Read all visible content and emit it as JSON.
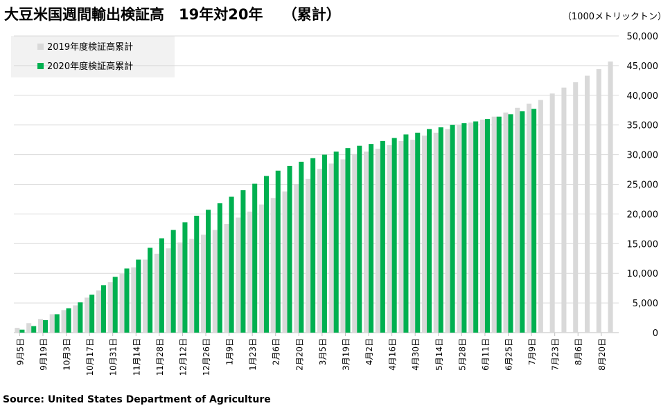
{
  "chart_data": {
    "type": "bar",
    "title": "大豆米国週間輸出検証高　19年対20年　 （累計）",
    "unit_label": "（1000メトリックトン）",
    "source": "Source: United States Department of Agriculture",
    "categories": [
      "9月5日",
      null,
      "9月19日",
      null,
      "10月3日",
      null,
      "10月17日",
      null,
      "10月31日",
      null,
      "11月14日",
      null,
      "11月28日",
      null,
      "12月12日",
      null,
      "12月26日",
      null,
      "1月9日",
      null,
      "1月23日",
      null,
      "2月6日",
      null,
      "2月20日",
      null,
      "3月5日",
      null,
      "3月19日",
      null,
      "4月2日",
      null,
      "4月16日",
      null,
      "4月30日",
      null,
      "5月14日",
      null,
      "5月28日",
      null,
      "6月11日",
      null,
      "6月25日",
      null,
      "7月9日",
      null,
      "7月23日",
      null,
      "8月6日",
      null,
      "8月20日",
      null
    ],
    "series": [
      {
        "name": "2019年度検証高累計",
        "color": "#d9d9d9",
        "values": [
          800,
          1600,
          2300,
          3100,
          3800,
          4600,
          5900,
          7100,
          8500,
          9900,
          11000,
          12300,
          13300,
          14200,
          15200,
          15800,
          16500,
          17300,
          18300,
          19400,
          20400,
          21600,
          22700,
          23800,
          25000,
          25900,
          27600,
          28500,
          29200,
          30100,
          30500,
          31000,
          31600,
          32300,
          32500,
          33200,
          33700,
          34300,
          35000,
          35400,
          35900,
          36400,
          37100,
          37900,
          38600,
          39200,
          40300,
          41300,
          42200,
          43300,
          44400,
          45700
        ]
      },
      {
        "name": "2020年度検証高累計",
        "color": "#00b050",
        "values": [
          500,
          1100,
          2100,
          3100,
          4100,
          5100,
          6400,
          8000,
          9400,
          10800,
          12300,
          14300,
          15900,
          17300,
          18600,
          19700,
          20700,
          21800,
          22900,
          24000,
          25100,
          26400,
          27300,
          28100,
          28800,
          29400,
          30000,
          30500,
          31100,
          31500,
          31800,
          32300,
          32800,
          33400,
          33700,
          34300,
          34600,
          35000,
          35300,
          35600,
          36000,
          36400,
          36800,
          37300,
          37700,
          null,
          null,
          null,
          null,
          null,
          null,
          null
        ]
      }
    ],
    "ylim": [
      0,
      50000
    ],
    "yticks": [
      0,
      {
        "value": 5000,
        "label": "5,000"
      },
      {
        "value": 10000,
        "label": "10,000"
      },
      {
        "value": 15000,
        "label": "15,000"
      },
      {
        "value": 20000,
        "label": "20,000"
      },
      {
        "value": 25000,
        "label": "25,000"
      },
      {
        "value": 30000,
        "label": "30,000"
      },
      {
        "value": 35000,
        "label": "35,000"
      },
      {
        "value": 40000,
        "label": "40,000"
      },
      {
        "value": 45000,
        "label": "45,000"
      },
      {
        "value": 50000,
        "label": "50,000"
      }
    ],
    "grid": true,
    "legend": "top-left"
  }
}
